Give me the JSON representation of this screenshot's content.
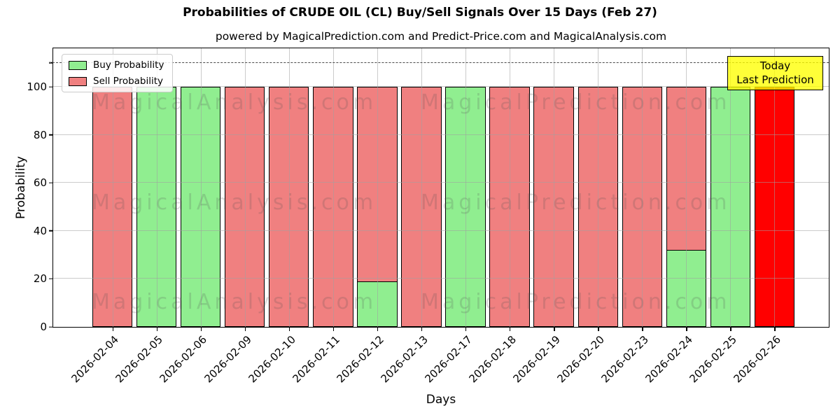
{
  "title": "Probabilities of CRUDE OIL (CL) Buy/Sell Signals Over 15 Days (Feb 27)",
  "subtitle": "powered by MagicalPrediction.com and Predict-Price.com and MagicalAnalysis.com",
  "legend": {
    "items": [
      {
        "label": "Buy Probability",
        "color": "#90EE90"
      },
      {
        "label": "Sell Probability",
        "color": "#F08080"
      }
    ]
  },
  "annotation": {
    "line1": "Today",
    "line2": "Last Prediction",
    "bg_color": "#FFFF00",
    "border_color": "#000000"
  },
  "watermarks": {
    "left": "MagicalAnalysis.com",
    "right": "MagicalPrediction.com"
  },
  "chart_data": {
    "type": "bar",
    "stacked": true,
    "title": "Probabilities of CRUDE OIL (CL) Buy/Sell Signals Over 15 Days (Feb 27)",
    "xlabel": "Days",
    "ylabel": "Probability",
    "categories": [
      "2026-02-04",
      "2026-02-05",
      "2026-02-06",
      "2026-02-09",
      "2026-02-10",
      "2026-02-11",
      "2026-02-12",
      "2026-02-13",
      "2026-02-17",
      "2026-02-18",
      "2026-02-19",
      "2026-02-20",
      "2026-02-23",
      "2026-02-24",
      "2026-02-25",
      "2026-02-26"
    ],
    "series": [
      {
        "name": "Buy Probability",
        "color": "#90EE90",
        "values": [
          0,
          100,
          100,
          0,
          0,
          0,
          19,
          0,
          100,
          0,
          0,
          0,
          0,
          32,
          100,
          0
        ]
      },
      {
        "name": "Sell Probability",
        "color": "#F08080",
        "values": [
          100,
          0,
          0,
          100,
          100,
          100,
          81,
          100,
          0,
          100,
          100,
          100,
          100,
          68,
          0,
          0
        ]
      }
    ],
    "today_bar": {
      "index": 15,
      "category": "2026-02-26",
      "value": 100,
      "color": "#FF0000"
    },
    "yticks": [
      0,
      20,
      40,
      60,
      80,
      100
    ],
    "ylim": [
      0,
      116
    ],
    "threshold_line": {
      "y": 110,
      "style": "dashed",
      "color": "#4a4a4a"
    },
    "grid": true,
    "legend_position": "upper left",
    "bar_edge_color": "#000000"
  }
}
